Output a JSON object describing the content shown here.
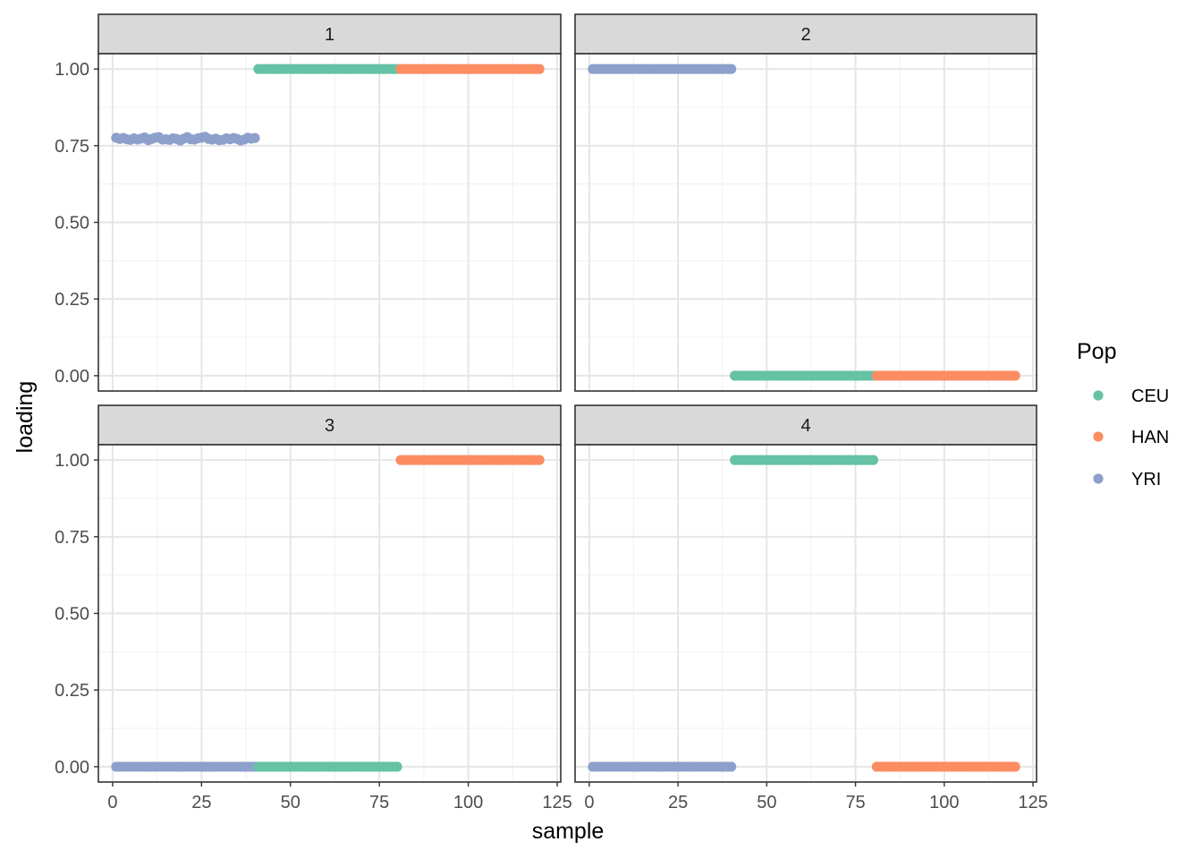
{
  "chart_data": {
    "type": "scatter",
    "xlabel": "sample",
    "ylabel": "loading",
    "xlim": [
      -4,
      126
    ],
    "ylim": [
      -0.05,
      1.05
    ],
    "x_ticks": [
      0,
      25,
      50,
      75,
      100,
      125
    ],
    "x_tick_labels": [
      "0",
      "25",
      "50",
      "75",
      "100",
      "125"
    ],
    "y_ticks": [
      0,
      0.25,
      0.5,
      0.75,
      1.0
    ],
    "y_tick_labels": [
      "0.00",
      "0.25",
      "0.50",
      "0.75",
      "1.00"
    ],
    "grid": true,
    "legend": {
      "title": "Pop",
      "placement": "right",
      "entries": [
        {
          "name": "CEU",
          "color": "#66c2a5"
        },
        {
          "name": "HAN",
          "color": "#fc8d62"
        },
        {
          "name": "YRI",
          "color": "#8da0cb"
        }
      ]
    },
    "series_ranges": {
      "YRI": [
        1,
        40
      ],
      "CEU": [
        41,
        80
      ],
      "HAN": [
        81,
        120
      ]
    },
    "panels": [
      {
        "label": "1",
        "series": [
          {
            "name": "YRI",
            "values": [
              0.776,
              0.772,
              0.775,
              0.771,
              0.769,
              0.774,
              0.77,
              0.773,
              0.777,
              0.768,
              0.772,
              0.776,
              0.778,
              0.77,
              0.771,
              0.769,
              0.774,
              0.772,
              0.767,
              0.773,
              0.778,
              0.771,
              0.77,
              0.774,
              0.776,
              0.779,
              0.772,
              0.77,
              0.773,
              0.768,
              0.769,
              0.774,
              0.771,
              0.775,
              0.772,
              0.767,
              0.77,
              0.776,
              0.773,
              0.775
            ]
          },
          {
            "name": "CEU",
            "constant": 1.0
          },
          {
            "name": "HAN",
            "constant": 1.0
          }
        ]
      },
      {
        "label": "2",
        "series": [
          {
            "name": "YRI",
            "constant": 1.0
          },
          {
            "name": "CEU",
            "constant": 0.0
          },
          {
            "name": "HAN",
            "constant": 0.0
          }
        ]
      },
      {
        "label": "3",
        "series": [
          {
            "name": "YRI",
            "constant": 0.0
          },
          {
            "name": "CEU",
            "constant": 0.0
          },
          {
            "name": "HAN",
            "constant": 1.0
          }
        ]
      },
      {
        "label": "4",
        "series": [
          {
            "name": "YRI",
            "constant": 0.0
          },
          {
            "name": "CEU",
            "constant": 1.0
          },
          {
            "name": "HAN",
            "constant": 0.0
          }
        ]
      }
    ]
  }
}
